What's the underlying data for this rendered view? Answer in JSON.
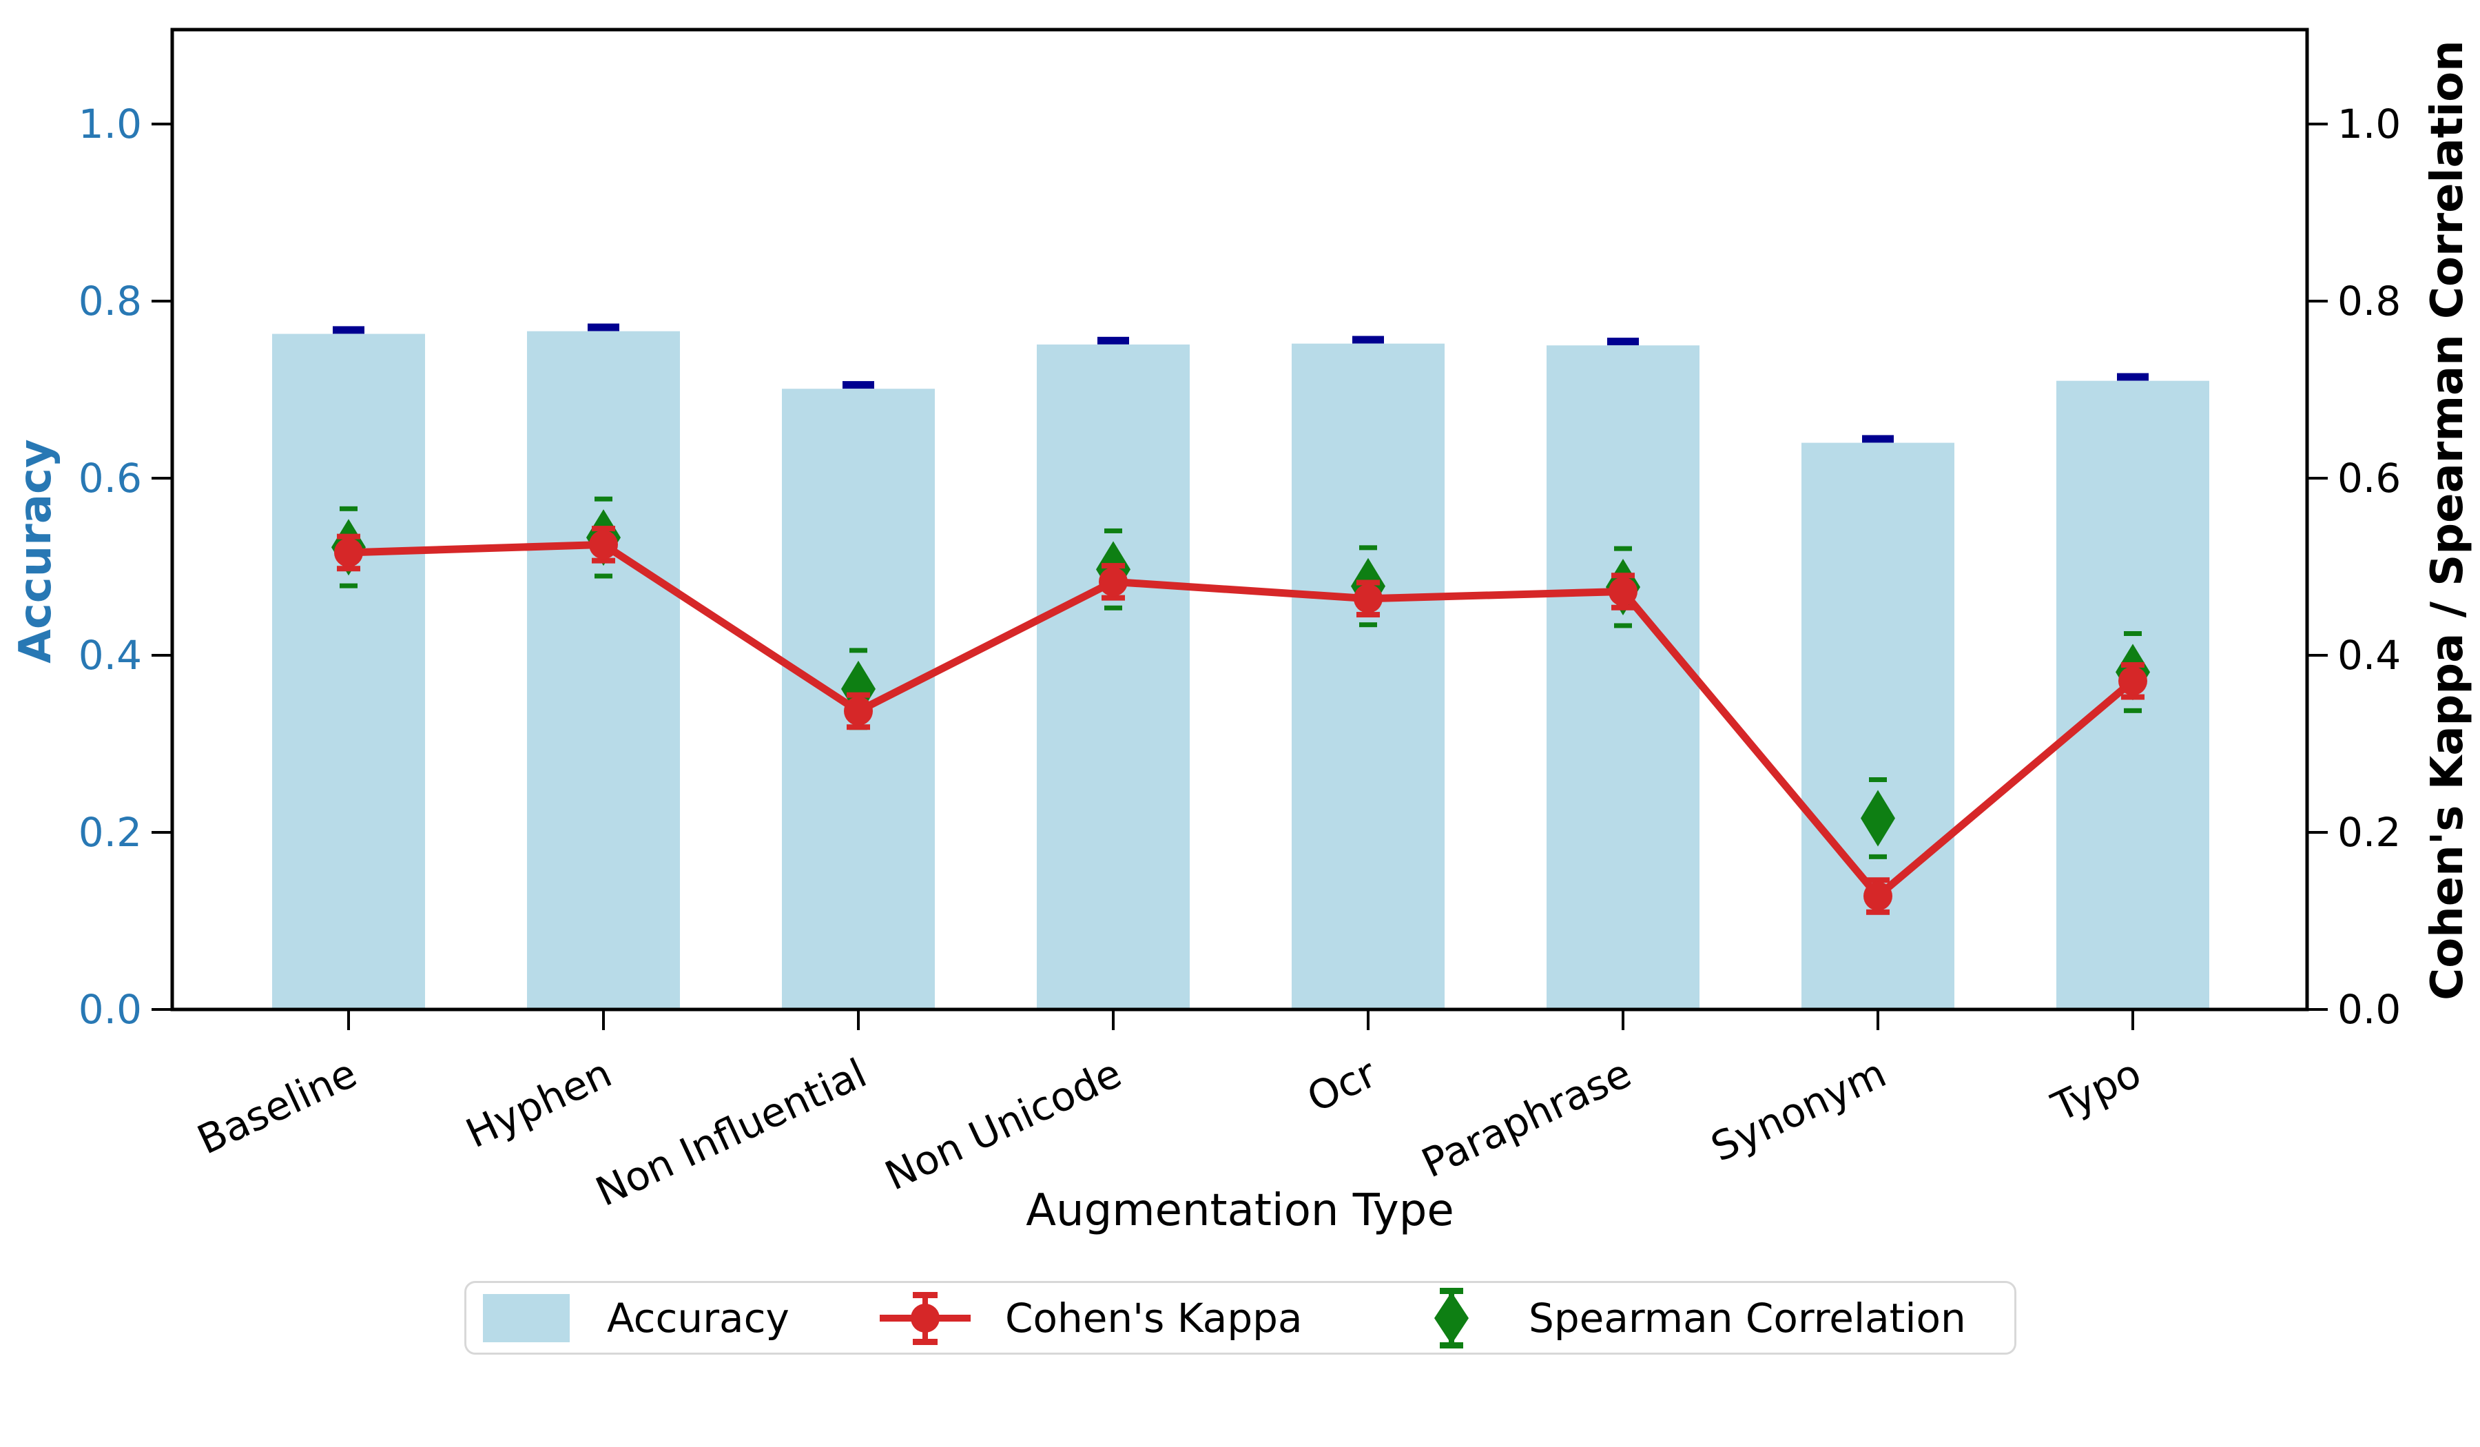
{
  "axes": {
    "x_label": "Augmentation Type",
    "left_label": "Accuracy",
    "right_label": "Cohen's Kappa / Spearman Correlation",
    "y_ticks": [
      "0.0",
      "0.2",
      "0.4",
      "0.6",
      "0.8",
      "1.0"
    ],
    "y_tick_values": [
      0.0,
      0.2,
      0.4,
      0.6,
      0.8,
      1.0
    ]
  },
  "legend": {
    "items": [
      {
        "label": "Accuracy"
      },
      {
        "label": "Cohen's Kappa"
      },
      {
        "label": "Spearman Correlation"
      }
    ]
  },
  "colors": {
    "bar": "#b8dbe8",
    "bar_error": "#000090",
    "kappa": "#d62728",
    "spearman": "#0e7f13",
    "accent_blue": "#2878b4",
    "spine": "#000000"
  },
  "chart_data": {
    "type": "combo",
    "categories": [
      "Baseline",
      "Hyphen",
      "Non Influential",
      "Non Unicode",
      "Ocr",
      "Paraphrase",
      "Synonym",
      "Typo"
    ],
    "series": [
      {
        "name": "Accuracy",
        "type": "bar",
        "axis": "left",
        "marker": "none",
        "values": [
          0.763,
          0.766,
          0.701,
          0.751,
          0.752,
          0.75,
          0.64,
          0.71
        ],
        "errors": [
          0.004,
          0.004,
          0.004,
          0.004,
          0.004,
          0.004,
          0.004,
          0.004
        ]
      },
      {
        "name": "Cohen's Kappa",
        "type": "line",
        "axis": "right",
        "marker": "circle",
        "values": [
          0.516,
          0.525,
          0.337,
          0.483,
          0.464,
          0.472,
          0.128,
          0.371
        ],
        "errors": [
          0.015,
          0.015,
          0.015,
          0.015,
          0.015,
          0.015,
          0.015,
          0.015
        ]
      },
      {
        "name": "Spearman Correlation",
        "type": "scatter",
        "axis": "right",
        "marker": "thin-diamond",
        "values": [
          0.522,
          0.533,
          0.362,
          0.497,
          0.478,
          0.477,
          0.216,
          0.381
        ],
        "errors": [
          0.012,
          0.012,
          0.012,
          0.012,
          0.012,
          0.012,
          0.012,
          0.012
        ]
      }
    ],
    "title": "",
    "xlabel": "Augmentation Type",
    "ylabel_left": "Accuracy",
    "ylabel_right": "Cohen's Kappa / Spearman Correlation",
    "ylim": [
      0.0,
      1.11
    ],
    "grid": false,
    "legend_position": "bottom"
  }
}
